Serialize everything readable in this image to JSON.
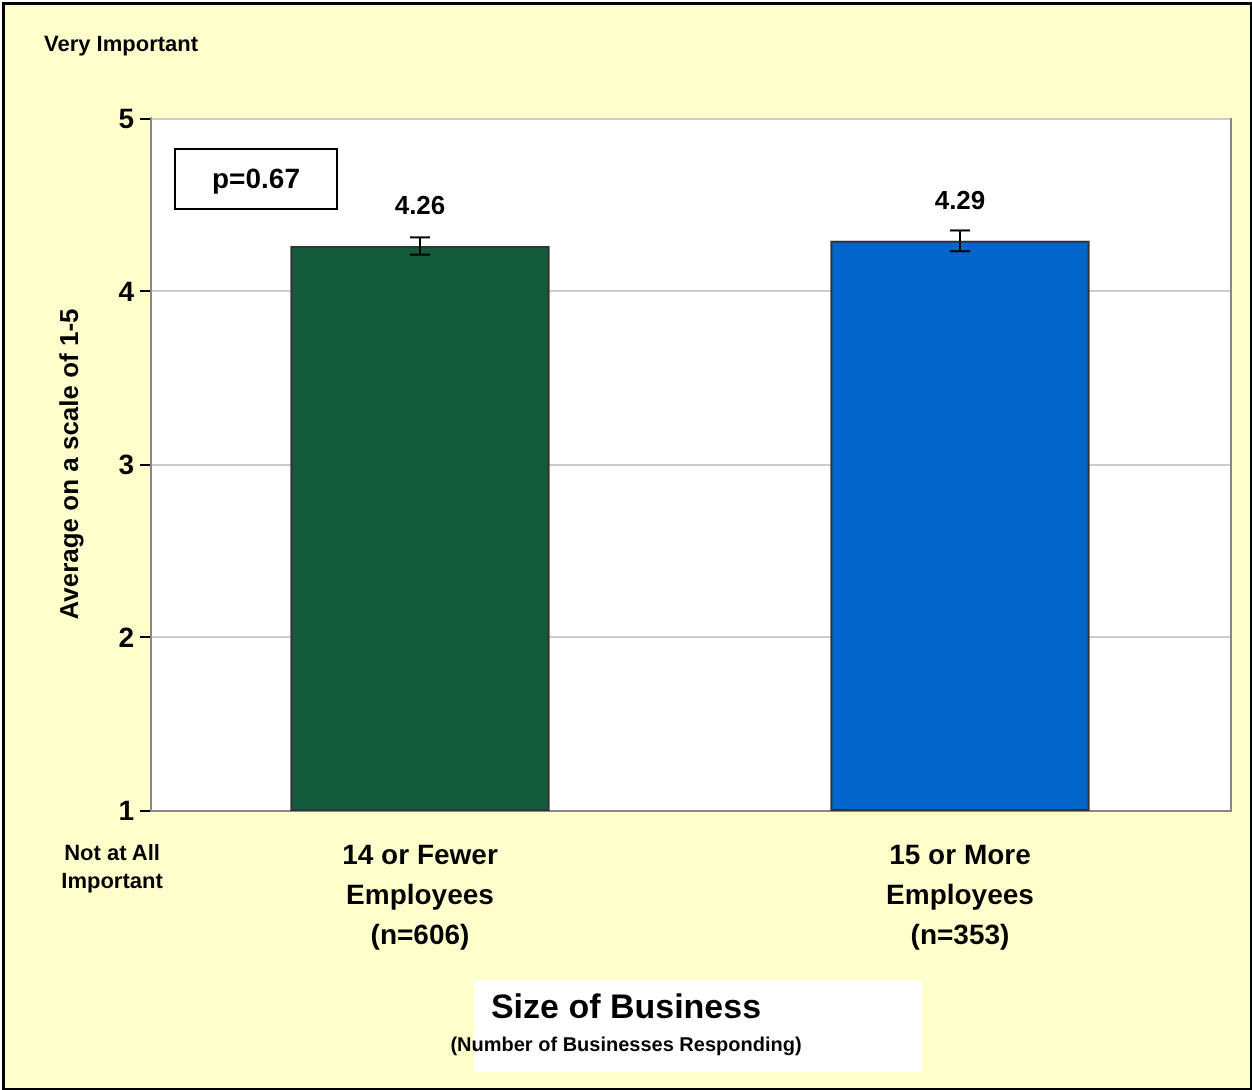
{
  "chart_data": {
    "type": "bar",
    "ylabel": "Average on a scale of 1-5",
    "xlabel": "Size of Business",
    "categories": [
      "14 or Fewer\nEmployees\n(n=606)",
      "15 or More\nEmployees\n(n=353)"
    ],
    "values": [
      4.26,
      4.29
    ],
    "colors": [
      "#145a3c",
      "#0066cc"
    ],
    "errors": [
      0.05,
      0.06
    ],
    "ylim": [
      1,
      5
    ],
    "yticks": [
      1,
      2,
      3,
      4,
      5
    ],
    "grid": "y",
    "data_labels": true,
    "annotations": [
      "(Number of Businesses Responding)",
      "Very Important",
      "Not at All\nImportant",
      "p=0.67"
    ]
  }
}
